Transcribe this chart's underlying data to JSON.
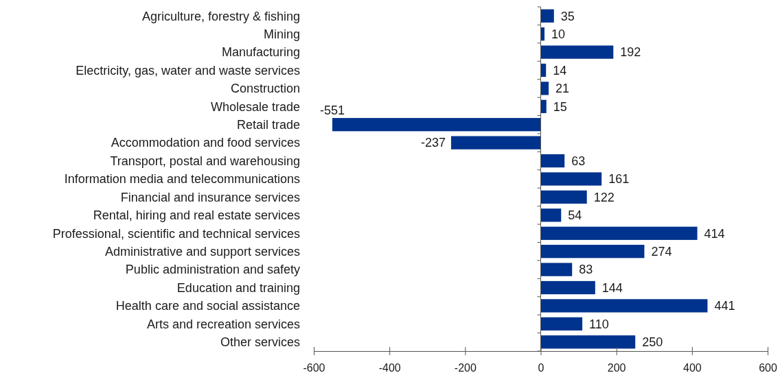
{
  "chart_data": {
    "type": "bar",
    "orientation": "horizontal",
    "categories": [
      "Agriculture, forestry & fishing",
      "Mining",
      "Manufacturing",
      "Electricity, gas, water and waste services",
      "Construction",
      "Wholesale trade",
      "Retail trade",
      "Accommodation and food services",
      "Transport, postal and warehousing",
      "Information media and telecommunications",
      "Financial and insurance services",
      "Rental, hiring and real estate services",
      "Professional, scientific and technical services",
      "Administrative and support services",
      "Public administration and safety",
      "Education and training",
      "Health care and social assistance",
      "Arts and recreation services",
      "Other services"
    ],
    "values": [
      35,
      10,
      192,
      14,
      21,
      15,
      -551,
      -237,
      63,
      161,
      122,
      54,
      414,
      274,
      83,
      144,
      441,
      110,
      250
    ],
    "color": "#00338d",
    "xlim": [
      -600,
      600
    ],
    "xticks": [
      -600,
      -400,
      -200,
      0,
      200,
      400,
      600
    ],
    "data_labels": true
  }
}
